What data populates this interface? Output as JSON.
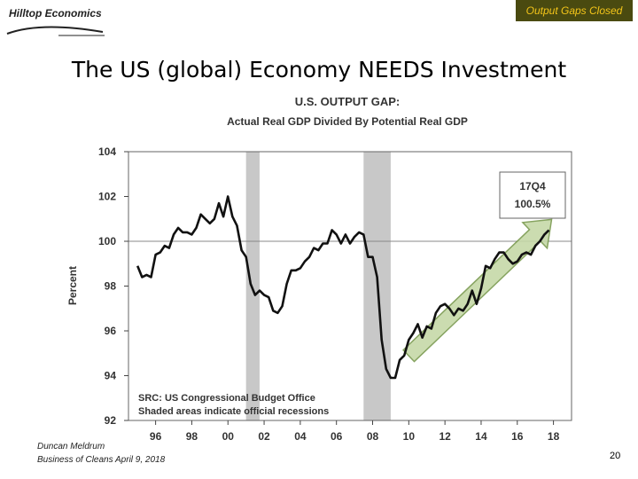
{
  "header": {
    "brand": "Hilltop Economics",
    "badge": "Output Gaps Closed"
  },
  "slide": {
    "title": "The US (global) Economy NEEDS Investment"
  },
  "chart_data": {
    "type": "line",
    "title": "U.S. OUTPUT GAP:",
    "subtitle": "Actual Real GDP Divided By Potential Real GDP",
    "xlabel": "",
    "ylabel": "Percent",
    "xlim": [
      1994.5,
      2019.0
    ],
    "ylim": [
      92,
      104
    ],
    "x_ticks": [
      1996,
      1998,
      2000,
      2002,
      2004,
      2006,
      2008,
      2010,
      2012,
      2014,
      2016,
      2018
    ],
    "x_tick_labels": [
      "96",
      "98",
      "00",
      "02",
      "04",
      "06",
      "08",
      "10",
      "12",
      "14",
      "16",
      "18"
    ],
    "y_ticks": [
      92,
      94,
      96,
      98,
      100,
      102,
      104
    ],
    "y_tick_labels": [
      "92",
      "94",
      "96",
      "98",
      "100",
      "102",
      "104"
    ],
    "reference_line": 100,
    "recessions": [
      [
        2001.0,
        2001.75
      ],
      [
        2007.5,
        2009.0
      ]
    ],
    "callout": {
      "quarter": "17Q4",
      "value": "100.5%"
    },
    "notes": [
      "SRC: US Congressional Budget Office",
      "Shaded areas indicate official recessions"
    ],
    "series": [
      {
        "name": "Output gap",
        "x": [
          1995.0,
          1995.25,
          1995.5,
          1995.75,
          1996.0,
          1996.25,
          1996.5,
          1996.75,
          1997.0,
          1997.25,
          1997.5,
          1997.75,
          1998.0,
          1998.25,
          1998.5,
          1998.75,
          1999.0,
          1999.25,
          1999.5,
          1999.75,
          2000.0,
          2000.25,
          2000.5,
          2000.75,
          2001.0,
          2001.25,
          2001.5,
          2001.75,
          2002.0,
          2002.25,
          2002.5,
          2002.75,
          2003.0,
          2003.25,
          2003.5,
          2003.75,
          2004.0,
          2004.25,
          2004.5,
          2004.75,
          2005.0,
          2005.25,
          2005.5,
          2005.75,
          2006.0,
          2006.25,
          2006.5,
          2006.75,
          2007.0,
          2007.25,
          2007.5,
          2007.75,
          2008.0,
          2008.25,
          2008.5,
          2008.75,
          2009.0,
          2009.25,
          2009.5,
          2009.75,
          2010.0,
          2010.25,
          2010.5,
          2010.75,
          2011.0,
          2011.25,
          2011.5,
          2011.75,
          2012.0,
          2012.25,
          2012.5,
          2012.75,
          2013.0,
          2013.25,
          2013.5,
          2013.75,
          2014.0,
          2014.25,
          2014.5,
          2014.75,
          2015.0,
          2015.25,
          2015.5,
          2015.75,
          2016.0,
          2016.25,
          2016.5,
          2016.75,
          2017.0,
          2017.25,
          2017.5,
          2017.75
        ],
        "values": [
          98.9,
          98.4,
          98.5,
          98.4,
          99.4,
          99.5,
          99.8,
          99.7,
          100.3,
          100.6,
          100.4,
          100.4,
          100.3,
          100.6,
          101.2,
          101.0,
          100.8,
          101.0,
          101.7,
          101.1,
          102.0,
          101.1,
          100.7,
          99.6,
          99.3,
          98.1,
          97.6,
          97.8,
          97.6,
          97.5,
          96.9,
          96.8,
          97.1,
          98.1,
          98.7,
          98.7,
          98.8,
          99.1,
          99.3,
          99.7,
          99.6,
          99.9,
          99.9,
          100.5,
          100.3,
          99.9,
          100.3,
          99.9,
          100.2,
          100.4,
          100.3,
          99.3,
          99.3,
          98.4,
          95.6,
          94.3,
          93.9,
          93.9,
          94.7,
          94.9,
          95.6,
          95.9,
          96.3,
          95.7,
          96.2,
          96.1,
          96.8,
          97.1,
          97.2,
          97.0,
          96.7,
          97.0,
          96.9,
          97.2,
          97.8,
          97.2,
          97.9,
          98.9,
          98.8,
          99.2,
          99.5,
          99.5,
          99.2,
          99.0,
          99.1,
          99.4,
          99.5,
          99.4,
          99.8,
          100.0,
          100.3,
          100.5
        ]
      }
    ]
  },
  "footer": {
    "author": "Duncan Meldrum",
    "event": "Business of Cleans April 9, 2018",
    "page_number": "20"
  }
}
